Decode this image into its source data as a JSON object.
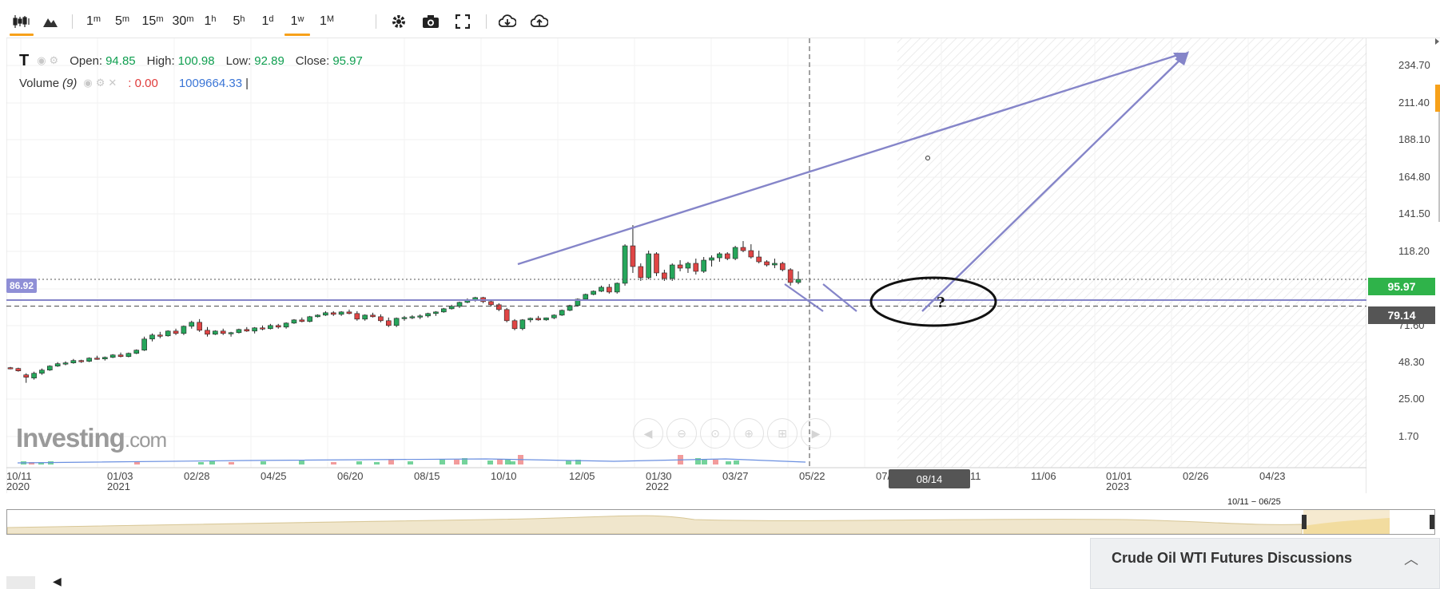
{
  "toolbar": {
    "chart_type_icons": [
      "candlestick-icon",
      "mountain-icon"
    ],
    "intervals": [
      "1m",
      "5m",
      "15m",
      "30m",
      "1h",
      "5h",
      "1d",
      "1w",
      "1M"
    ],
    "interval_labels": [
      {
        "num": "1",
        "unit": "m"
      },
      {
        "num": "5",
        "unit": "m"
      },
      {
        "num": "15",
        "unit": "m"
      },
      {
        "num": "30",
        "unit": "m"
      },
      {
        "num": "1",
        "unit": "h"
      },
      {
        "num": "5",
        "unit": "h"
      },
      {
        "num": "1",
        "unit": "d"
      },
      {
        "num": "1",
        "unit": "w"
      },
      {
        "num": "1",
        "unit": "M"
      }
    ],
    "active_interval": "1w",
    "tool_icons": [
      "gear-icon",
      "camera-icon",
      "fullscreen-icon",
      "download-icon",
      "upload-icon"
    ]
  },
  "legend": {
    "symbol": "T",
    "open_label": "Open:",
    "open": "94.85",
    "high_label": "High:",
    "high": "100.98",
    "low_label": "Low:",
    "low": "92.89",
    "close_label": "Close:",
    "close": "95.97",
    "volume_label": "Volume",
    "volume_param": "(9)",
    "volume_value": ": 0.00",
    "volume_ma": "1009664.33",
    "cursor_bar": "|"
  },
  "watermark": {
    "brand": "Investing",
    "suffix": ".com"
  },
  "price_axis": {
    "ticks": [
      "234.70",
      "211.40",
      "188.10",
      "164.80",
      "141.50",
      "118.20",
      "95.97",
      "71.60",
      "48.30",
      "25.00",
      "1.70"
    ],
    "last_price": "95.97",
    "crosshair_price": "79.14",
    "left_badge": "86.92",
    "colors": {
      "last_price_badge": "#2fb34a",
      "crosshair_badge": "#555555",
      "accent": "#f7a11a",
      "drawing": "#8585c9"
    }
  },
  "time_axis": {
    "ticks": [
      {
        "top": "10/11",
        "bottom": "2020"
      },
      {
        "top": "01/03",
        "bottom": "2021"
      },
      {
        "top": "02/28",
        "bottom": ""
      },
      {
        "top": "04/25",
        "bottom": ""
      },
      {
        "top": "06/20",
        "bottom": ""
      },
      {
        "top": "08/15",
        "bottom": ""
      },
      {
        "top": "10/10",
        "bottom": ""
      },
      {
        "top": "12/05",
        "bottom": ""
      },
      {
        "top": "01/30",
        "bottom": "2022"
      },
      {
        "top": "03/27",
        "bottom": ""
      },
      {
        "top": "05/22",
        "bottom": ""
      },
      {
        "top": "07/",
        "bottom": ""
      },
      {
        "top": "11",
        "bottom": ""
      },
      {
        "top": "11/06",
        "bottom": ""
      },
      {
        "top": "01/01",
        "bottom": "2023"
      },
      {
        "top": "02/26",
        "bottom": ""
      },
      {
        "top": "04/23",
        "bottom": ""
      }
    ],
    "cursor_date": "08/14"
  },
  "navigator": {
    "range_label": "10/11 − 06/25"
  },
  "annotation": {
    "question_mark": "?"
  },
  "nav_button_icons": [
    "scroll-left-icon",
    "zoom-out-icon",
    "zoom-reset-icon",
    "zoom-in-icon",
    "zoom-fit-icon",
    "scroll-right-icon"
  ],
  "discussions": {
    "title": "Crude Oil WTI Futures Discussions",
    "toggle_icon": "chevron-up-icon"
  },
  "chart_data": {
    "type": "candlestick",
    "title": "",
    "ylim": [
      1.7,
      234.7
    ],
    "grid": true,
    "candles_ohlc": [
      [
        40.5,
        41,
        39.5,
        40.2
      ],
      [
        40,
        40.5,
        38,
        38.5
      ],
      [
        36,
        37,
        31,
        34.5
      ],
      [
        34,
        38,
        33,
        37
      ],
      [
        37,
        40,
        36,
        39
      ],
      [
        39,
        42,
        38.5,
        41.5
      ],
      [
        41.5,
        44,
        41,
        43
      ],
      [
        43,
        44.5,
        42,
        43.5
      ],
      [
        43.5,
        46,
        43,
        45
      ],
      [
        45,
        45.5,
        43.5,
        44.5
      ],
      [
        44.5,
        47,
        44,
        46.5
      ],
      [
        46.5,
        48,
        45.5,
        46
      ],
      [
        46,
        47.5,
        45,
        47
      ],
      [
        47,
        49,
        46.5,
        48.5
      ],
      [
        48.5,
        50,
        47,
        47.5
      ],
      [
        47.5,
        50,
        47,
        49.5
      ],
      [
        49.5,
        52,
        49,
        51.5
      ],
      [
        51.5,
        60,
        51,
        58.5
      ],
      [
        58.5,
        62,
        57,
        61
      ],
      [
        61,
        63,
        59,
        60.5
      ],
      [
        60.5,
        64,
        60,
        63.5
      ],
      [
        63.5,
        65,
        61,
        62
      ],
      [
        62,
        67,
        61,
        66.5
      ],
      [
        66.5,
        70,
        65,
        69
      ],
      [
        69,
        71,
        63,
        64
      ],
      [
        64,
        66,
        60,
        61.5
      ],
      [
        61.5,
        64,
        61,
        63.5
      ],
      [
        63.5,
        65,
        61,
        62
      ],
      [
        62,
        63,
        60,
        62.5
      ],
      [
        62.5,
        65,
        62,
        64.5
      ],
      [
        64.5,
        66,
        63,
        63.5
      ],
      [
        63.5,
        66,
        62,
        65.5
      ],
      [
        65.5,
        67,
        64,
        65
      ],
      [
        65,
        68,
        64.5,
        67
      ],
      [
        67,
        68,
        65,
        66
      ],
      [
        66,
        69,
        65,
        68.5
      ],
      [
        68.5,
        71,
        68,
        70.5
      ],
      [
        70.5,
        72,
        69,
        69.5
      ],
      [
        69.5,
        73,
        69,
        72.5
      ],
      [
        72.5,
        74,
        72,
        73.5
      ],
      [
        73.5,
        76,
        73,
        75
      ],
      [
        75,
        76,
        73,
        74
      ],
      [
        74,
        76,
        73,
        75.5
      ],
      [
        75.5,
        77,
        74,
        74.5
      ],
      [
        74.5,
        76,
        70,
        71
      ],
      [
        71,
        74,
        70,
        73.5
      ],
      [
        73.5,
        75,
        72,
        72.5
      ],
      [
        72.5,
        74,
        69,
        70
      ],
      [
        70,
        72,
        66,
        67
      ],
      [
        67,
        72,
        66,
        71.5
      ],
      [
        71.5,
        73,
        70,
        72
      ],
      [
        72,
        73.5,
        71,
        72.5
      ],
      [
        72.5,
        74,
        71,
        73
      ],
      [
        73,
        75,
        72,
        74.5
      ],
      [
        74.5,
        76,
        73,
        75.5
      ],
      [
        75.5,
        78,
        75,
        77.5
      ],
      [
        77.5,
        80,
        77,
        79
      ],
      [
        79,
        82,
        78,
        81.5
      ],
      [
        81.5,
        84,
        81,
        83
      ],
      [
        83,
        85,
        82,
        84.5
      ],
      [
        84.5,
        85,
        81,
        82
      ],
      [
        82,
        83,
        79,
        80
      ],
      [
        80,
        81,
        76,
        77
      ],
      [
        77,
        78,
        69,
        70
      ],
      [
        70,
        71,
        64,
        65
      ],
      [
        65,
        71,
        64,
        70.5
      ],
      [
        70.5,
        72,
        69,
        71.5
      ],
      [
        71.5,
        73,
        70,
        70.5
      ],
      [
        70.5,
        72,
        70,
        71.8
      ],
      [
        71.8,
        74,
        71,
        73.5
      ],
      [
        73.5,
        77,
        73,
        76.5
      ],
      [
        76.5,
        80,
        76,
        79.5
      ],
      [
        79.5,
        84,
        79,
        83.5
      ],
      [
        83.5,
        87,
        83,
        86.5
      ],
      [
        86.5,
        89,
        86,
        88.5
      ],
      [
        88.5,
        92,
        88,
        91
      ],
      [
        91,
        93,
        87,
        88
      ],
      [
        88,
        94,
        87,
        93.5
      ],
      [
        93.5,
        118,
        92,
        117
      ],
      [
        117,
        130,
        100,
        104
      ],
      [
        104,
        106,
        95,
        97
      ],
      [
        97,
        114,
        96,
        112
      ],
      [
        112,
        113,
        98,
        100
      ],
      [
        100,
        102,
        95,
        96.5
      ],
      [
        96.5,
        106,
        95,
        105
      ],
      [
        105,
        108,
        101,
        103
      ],
      [
        103,
        107,
        100,
        106
      ],
      [
        106,
        109,
        99,
        101
      ],
      [
        101,
        110,
        100,
        108
      ],
      [
        108,
        111,
        104,
        109.5
      ],
      [
        109.5,
        113,
        107,
        112
      ],
      [
        112,
        113,
        108,
        109
      ],
      [
        109,
        117,
        108,
        116
      ],
      [
        116,
        120,
        113,
        114
      ],
      [
        114,
        118,
        109,
        110
      ],
      [
        110,
        114,
        106,
        107
      ],
      [
        107,
        108,
        104,
        105
      ],
      [
        105,
        109,
        103,
        106
      ],
      [
        106,
        107,
        101,
        102
      ],
      [
        102,
        103,
        92,
        94
      ],
      [
        94,
        100.98,
        92.89,
        95.97
      ]
    ],
    "last_price": 95.97
  }
}
